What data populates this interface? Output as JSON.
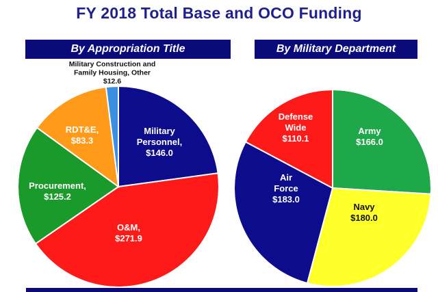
{
  "title": "FY 2018 Total Base and OCO Funding",
  "chart_data": [
    {
      "type": "pie",
      "title": "By Appropriation Title",
      "slices": [
        {
          "label": [
            "Military",
            "Personnel,"
          ],
          "value_text": "$146.0",
          "value": 146.0,
          "color": "#0c0c8c"
        },
        {
          "label": [
            "O&M,"
          ],
          "value_text": "$271.9",
          "value": 271.9,
          "color": "#ff1a1a"
        },
        {
          "label": [
            "Procurement,"
          ],
          "value_text": "$125.2",
          "value": 125.2,
          "color": "#1a9a2a"
        },
        {
          "label": [
            "RDT&E,"
          ],
          "value_text": "$83.3",
          "value": 83.3,
          "color": "#ff9a1a"
        },
        {
          "label": [
            "Military Construction and",
            "Family Housing, Other"
          ],
          "value_text": "$12.6",
          "value": 12.6,
          "color": "#3a8fe0"
        }
      ]
    },
    {
      "type": "pie",
      "title": "By Military Department",
      "slices": [
        {
          "label": [
            "Army"
          ],
          "value_text": "$166.0",
          "value": 166.0,
          "color": "#1ea84a"
        },
        {
          "label": [
            "Navy"
          ],
          "value_text": "$180.0",
          "value": 180.0,
          "color": "#ffff2a"
        },
        {
          "label": [
            "Air",
            "Force"
          ],
          "value_text": "$183.0",
          "value": 183.0,
          "color": "#0c0c8c"
        },
        {
          "label": [
            "Defense",
            "Wide"
          ],
          "value_text": "$110.1",
          "value": 110.1,
          "color": "#ff1a1a"
        }
      ]
    }
  ]
}
